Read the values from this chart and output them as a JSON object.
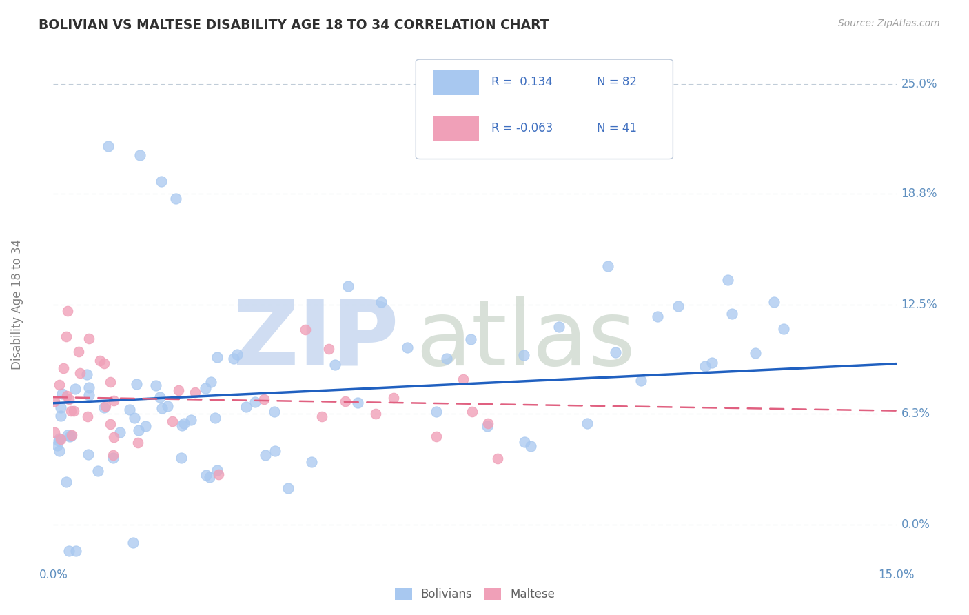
{
  "title": "BOLIVIAN VS MALTESE DISABILITY AGE 18 TO 34 CORRELATION CHART",
  "source": "Source: ZipAtlas.com",
  "ylabel": "Disability Age 18 to 34",
  "xlim": [
    0.0,
    0.15
  ],
  "ylim": [
    -0.02,
    0.27
  ],
  "ytick_vals": [
    0.0,
    0.063,
    0.125,
    0.188,
    0.25
  ],
  "ytick_labels": [
    "0.0%",
    "6.3%",
    "12.5%",
    "18.8%",
    "25.0%"
  ],
  "xtick_vals": [
    0.0,
    0.15
  ],
  "xtick_labels": [
    "0.0%",
    "15.0%"
  ],
  "bolivians_R": 0.134,
  "bolivians_N": 82,
  "maltese_R": -0.063,
  "maltese_N": 41,
  "blue_scatter": "#A8C8F0",
  "pink_scatter": "#F0A0B8",
  "trend_blue": "#2060C0",
  "trend_pink": "#E06080",
  "grid_color": "#C0CCD8",
  "title_color": "#303030",
  "axis_label_color": "#6090C0",
  "legend_text_color": "#4070C0",
  "watermark_zip_color": "#C8D8F0",
  "watermark_atlas_color": "#C8D4C8",
  "bg_color": "#FFFFFF",
  "seed": 17
}
